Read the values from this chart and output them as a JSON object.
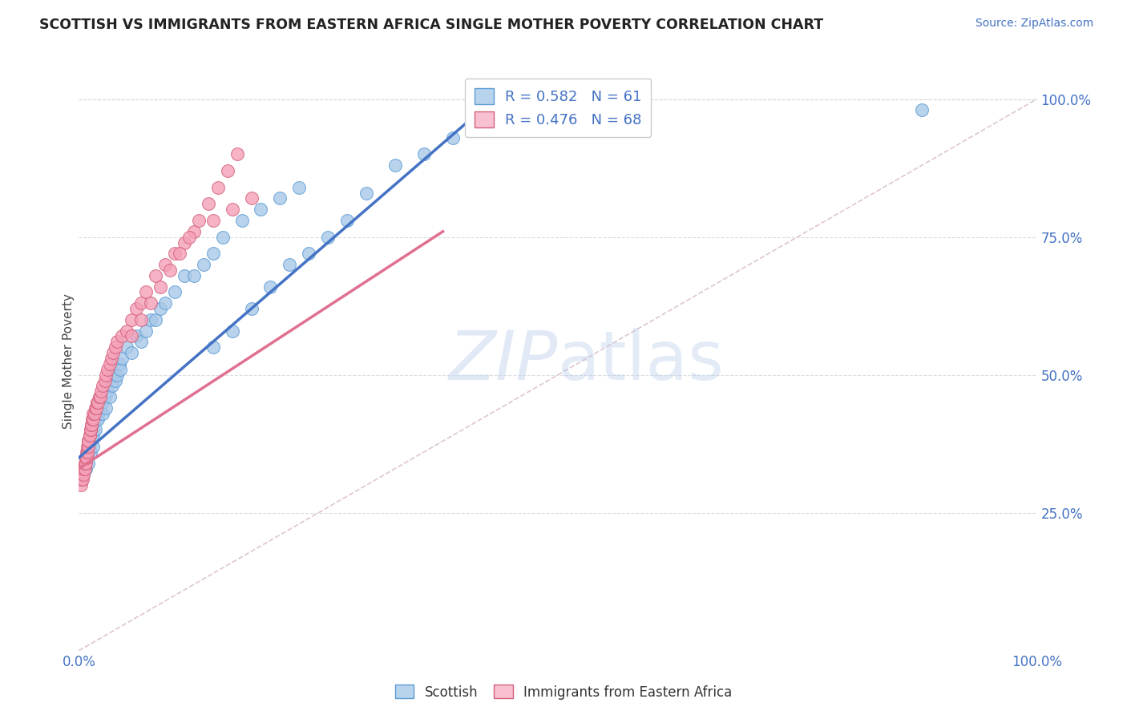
{
  "title": "SCOTTISH VS IMMIGRANTS FROM EASTERN AFRICA SINGLE MOTHER POVERTY CORRELATION CHART",
  "source": "Source: ZipAtlas.com",
  "ylabel": "Single Mother Poverty",
  "legend_label1": "Scottish",
  "legend_label2": "Immigrants from Eastern Africa",
  "R1": 0.582,
  "N1": 61,
  "R2": 0.476,
  "N2": 68,
  "color_blue_fill": "#a8c8e8",
  "color_blue_edge": "#5b9bd5",
  "color_pink_fill": "#f4a0b8",
  "color_pink_edge": "#d4607a",
  "color_blue_line": "#4472c4",
  "color_pink_line": "#e07090",
  "color_diag": "#c8c8c8",
  "background_plot": "#ffffff",
  "background_fig": "#ffffff",
  "blue_x": [
    0.005,
    0.007,
    0.008,
    0.01,
    0.01,
    0.01,
    0.012,
    0.013,
    0.015,
    0.015,
    0.015,
    0.017,
    0.018,
    0.02,
    0.02,
    0.022,
    0.025,
    0.025,
    0.027,
    0.028,
    0.03,
    0.032,
    0.035,
    0.035,
    0.038,
    0.04,
    0.042,
    0.043,
    0.045,
    0.05,
    0.055,
    0.06,
    0.065,
    0.07,
    0.075,
    0.08,
    0.085,
    0.09,
    0.1,
    0.11,
    0.12,
    0.13,
    0.14,
    0.15,
    0.17,
    0.19,
    0.21,
    0.23,
    0.14,
    0.16,
    0.18,
    0.2,
    0.22,
    0.24,
    0.26,
    0.28,
    0.3,
    0.33,
    0.36,
    0.39,
    0.88
  ],
  "blue_y": [
    0.32,
    0.33,
    0.35,
    0.34,
    0.36,
    0.38,
    0.36,
    0.38,
    0.37,
    0.39,
    0.4,
    0.4,
    0.42,
    0.42,
    0.43,
    0.44,
    0.43,
    0.45,
    0.46,
    0.44,
    0.47,
    0.46,
    0.48,
    0.5,
    0.49,
    0.5,
    0.52,
    0.51,
    0.53,
    0.55,
    0.54,
    0.57,
    0.56,
    0.58,
    0.6,
    0.6,
    0.62,
    0.63,
    0.65,
    0.68,
    0.68,
    0.7,
    0.72,
    0.75,
    0.78,
    0.8,
    0.82,
    0.84,
    0.55,
    0.58,
    0.62,
    0.66,
    0.7,
    0.72,
    0.75,
    0.78,
    0.83,
    0.88,
    0.9,
    0.93,
    0.98
  ],
  "pink_x": [
    0.002,
    0.003,
    0.004,
    0.005,
    0.005,
    0.006,
    0.006,
    0.007,
    0.007,
    0.008,
    0.008,
    0.009,
    0.009,
    0.01,
    0.01,
    0.01,
    0.011,
    0.011,
    0.012,
    0.012,
    0.013,
    0.013,
    0.014,
    0.015,
    0.015,
    0.016,
    0.017,
    0.018,
    0.019,
    0.02,
    0.021,
    0.022,
    0.023,
    0.025,
    0.027,
    0.028,
    0.03,
    0.032,
    0.034,
    0.036,
    0.038,
    0.04,
    0.045,
    0.05,
    0.055,
    0.06,
    0.065,
    0.07,
    0.08,
    0.09,
    0.1,
    0.11,
    0.12,
    0.14,
    0.16,
    0.18,
    0.055,
    0.065,
    0.075,
    0.085,
    0.095,
    0.105,
    0.115,
    0.125,
    0.135,
    0.145,
    0.155,
    0.165
  ],
  "pink_y": [
    0.3,
    0.31,
    0.31,
    0.32,
    0.33,
    0.33,
    0.34,
    0.34,
    0.35,
    0.35,
    0.36,
    0.36,
    0.37,
    0.37,
    0.38,
    0.38,
    0.39,
    0.39,
    0.4,
    0.4,
    0.41,
    0.41,
    0.42,
    0.42,
    0.43,
    0.43,
    0.44,
    0.44,
    0.45,
    0.45,
    0.46,
    0.46,
    0.47,
    0.48,
    0.49,
    0.5,
    0.51,
    0.52,
    0.53,
    0.54,
    0.55,
    0.56,
    0.57,
    0.58,
    0.6,
    0.62,
    0.63,
    0.65,
    0.68,
    0.7,
    0.72,
    0.74,
    0.76,
    0.78,
    0.8,
    0.82,
    0.57,
    0.6,
    0.63,
    0.66,
    0.69,
    0.72,
    0.75,
    0.78,
    0.81,
    0.84,
    0.87,
    0.9
  ],
  "blue_line_x": [
    0.0,
    0.44
  ],
  "blue_line_y": [
    0.35,
    1.01
  ],
  "pink_line_x": [
    0.0,
    0.38
  ],
  "pink_line_y": [
    0.33,
    0.76
  ],
  "xlim": [
    0.0,
    1.0
  ],
  "ylim": [
    0.0,
    1.05
  ],
  "ytick_positions": [
    0.0,
    0.25,
    0.5,
    0.75,
    1.0
  ],
  "ytick_right_labels": [
    "",
    "25.0%",
    "50.0%",
    "75.0%",
    "100.0%"
  ],
  "xtick_labels_pos": [
    0.0,
    1.0
  ],
  "xtick_labels": [
    "0.0%",
    "100.0%"
  ]
}
